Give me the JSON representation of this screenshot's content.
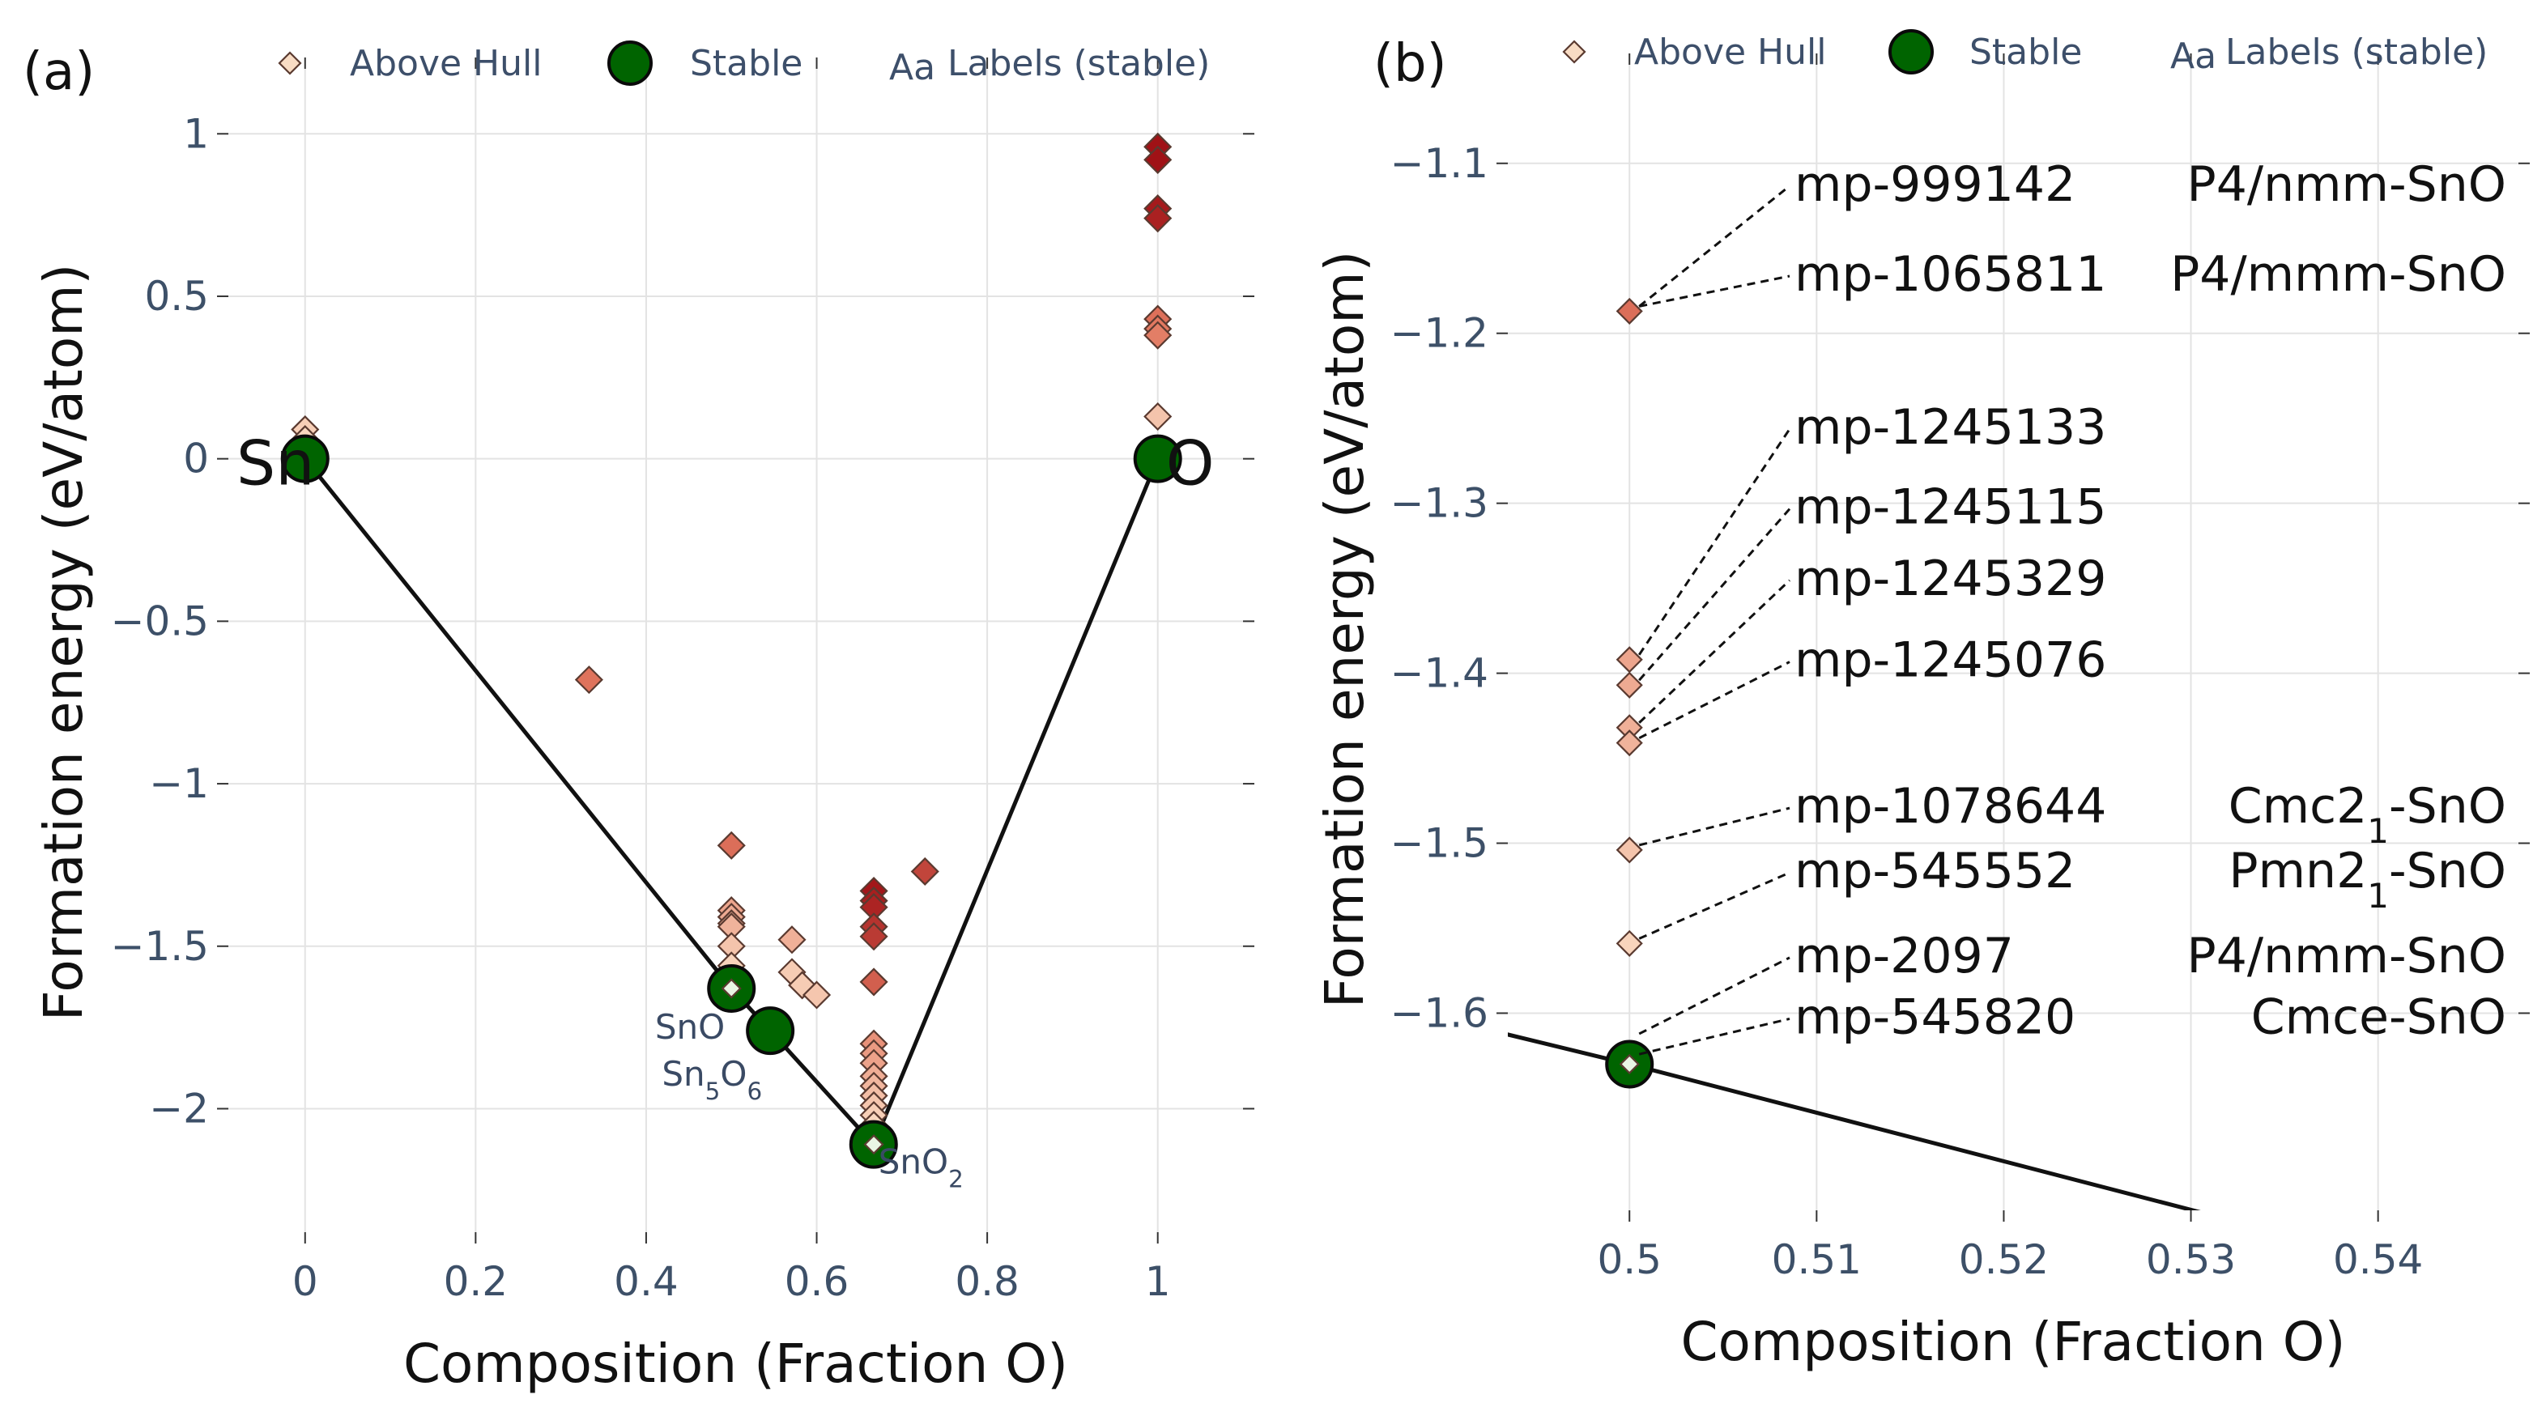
{
  "chart_data": [
    {
      "panel_label": "(a)",
      "type": "scatter",
      "xlabel": "Composition (Fraction O)",
      "ylabel": "Formation energy (eV/atom)",
      "xlim": [
        -0.09,
        1.1
      ],
      "ylim": [
        -2.38,
        1.2
      ],
      "xticks": [
        0,
        0.2,
        0.4,
        0.6,
        0.8,
        1
      ],
      "xtick_labels": [
        "0",
        "0.2",
        "0.4",
        "0.6",
        "0.8",
        "1"
      ],
      "yticks": [
        1,
        0.5,
        0,
        -0.5,
        -1,
        -1.5,
        -2
      ],
      "ytick_labels": [
        "1",
        "0.5",
        "0",
        "−0.5",
        "−1",
        "−1.5",
        "−2"
      ],
      "legend": [
        "Above Hull",
        "Stable",
        "Labels (stable)"
      ],
      "legend_icon_text": "Aa",
      "hull_line": {
        "x": [
          0,
          0.5,
          0.5455,
          0.6667,
          1
        ],
        "y": [
          0,
          -1.63,
          -1.76,
          -2.11,
          0
        ]
      },
      "stable": [
        {
          "x": 0,
          "y": 0
        },
        {
          "x": 0.5,
          "y": -1.63
        },
        {
          "x": 0.5455,
          "y": -1.76
        },
        {
          "x": 0.6667,
          "y": -2.11
        },
        {
          "x": 1,
          "y": 0
        }
      ],
      "above_hull": [
        {
          "x": 0,
          "y": 0.09,
          "e": 0.09
        },
        {
          "x": 0,
          "y": 0.06,
          "e": 0.06
        },
        {
          "x": 0,
          "y": 0.03,
          "e": 0.03
        },
        {
          "x": 0.333,
          "y": -0.68,
          "e": 0.42
        },
        {
          "x": 0.5,
          "y": -1.19,
          "e": 0.44
        },
        {
          "x": 0.5,
          "y": -1.39,
          "e": 0.24
        },
        {
          "x": 0.5,
          "y": -1.41,
          "e": 0.22
        },
        {
          "x": 0.5,
          "y": -1.43,
          "e": 0.2
        },
        {
          "x": 0.5,
          "y": -1.44,
          "e": 0.19
        },
        {
          "x": 0.5,
          "y": -1.5,
          "e": 0.13
        },
        {
          "x": 0.5,
          "y": -1.56,
          "e": 0.07
        },
        {
          "x": 0.5,
          "y": -1.63,
          "e": 0.0
        },
        {
          "x": 0.571,
          "y": -1.48,
          "e": 0.2
        },
        {
          "x": 0.571,
          "y": -1.58,
          "e": 0.1
        },
        {
          "x": 0.583,
          "y": -1.62,
          "e": 0.1
        },
        {
          "x": 0.6,
          "y": -1.65,
          "e": 0.12
        },
        {
          "x": 0.667,
          "y": -1.33,
          "e": 0.78
        },
        {
          "x": 0.667,
          "y": -1.36,
          "e": 0.75
        },
        {
          "x": 0.667,
          "y": -1.38,
          "e": 0.73
        },
        {
          "x": 0.667,
          "y": -1.44,
          "e": 0.67
        },
        {
          "x": 0.667,
          "y": -1.47,
          "e": 0.64
        },
        {
          "x": 0.667,
          "y": -1.61,
          "e": 0.5
        },
        {
          "x": 0.667,
          "y": -1.8,
          "e": 0.31
        },
        {
          "x": 0.667,
          "y": -1.83,
          "e": 0.28
        },
        {
          "x": 0.667,
          "y": -1.86,
          "e": 0.25
        },
        {
          "x": 0.667,
          "y": -1.9,
          "e": 0.21
        },
        {
          "x": 0.667,
          "y": -1.93,
          "e": 0.18
        },
        {
          "x": 0.667,
          "y": -1.96,
          "e": 0.15
        },
        {
          "x": 0.667,
          "y": -1.99,
          "e": 0.12
        },
        {
          "x": 0.667,
          "y": -2.02,
          "e": 0.09
        },
        {
          "x": 0.667,
          "y": -2.05,
          "e": 0.06
        },
        {
          "x": 0.667,
          "y": -2.08,
          "e": 0.03
        },
        {
          "x": 0.667,
          "y": -2.11,
          "e": 0.0
        },
        {
          "x": 0.727,
          "y": -1.27,
          "e": 0.6
        },
        {
          "x": 1,
          "y": 0.96,
          "e": 0.96
        },
        {
          "x": 1,
          "y": 0.92,
          "e": 0.92
        },
        {
          "x": 1,
          "y": 0.77,
          "e": 0.77
        },
        {
          "x": 1,
          "y": 0.74,
          "e": 0.74
        },
        {
          "x": 1,
          "y": 0.43,
          "e": 0.43
        },
        {
          "x": 1,
          "y": 0.4,
          "e": 0.4
        },
        {
          "x": 1,
          "y": 0.38,
          "e": 0.38
        },
        {
          "x": 1,
          "y": 0.13,
          "e": 0.13
        }
      ],
      "element_labels": [
        {
          "text": "Sn",
          "x": 0,
          "y": 0,
          "anchor": "left-edge"
        },
        {
          "text": "O",
          "x": 1,
          "y": 0,
          "anchor": "right-edge"
        }
      ],
      "stable_labels": [
        {
          "parts": [
            [
              "Sn",
              ""
            ],
            [
              "O",
              ""
            ]
          ],
          "x": 0.5,
          "y": -1.63,
          "place": "below-left"
        },
        {
          "parts": [
            [
              "Sn",
              ""
            ],
            [
              "5",
              "sub"
            ],
            [
              "O",
              ""
            ],
            [
              "6",
              "sub"
            ]
          ],
          "x": 0.5455,
          "y": -1.76,
          "place": "below-left"
        },
        {
          "parts": [
            [
              "SnO",
              ""
            ],
            [
              "2",
              "sub"
            ]
          ],
          "x": 0.6667,
          "y": -2.11,
          "place": "right"
        }
      ]
    },
    {
      "panel_label": "(b)",
      "type": "scatter",
      "xlabel": "Composition (Fraction O)",
      "ylabel": "Formation energy (eV/atom)",
      "xlim": [
        0.4935,
        0.5475
      ],
      "ylim": [
        -1.716,
        -1.042
      ],
      "xticks": [
        0.5,
        0.51,
        0.52,
        0.53,
        0.54
      ],
      "xtick_labels": [
        "0.5",
        "0.51",
        "0.52",
        "0.53",
        "0.54"
      ],
      "yticks": [
        -1.1,
        -1.2,
        -1.3,
        -1.4,
        -1.5,
        -1.6
      ],
      "ytick_labels": [
        "−1.1",
        "−1.2",
        "−1.3",
        "−1.4",
        "−1.5",
        "−1.6"
      ],
      "legend": [
        "Above Hull",
        "Stable",
        "Labels (stable)"
      ],
      "legend_icon_text": "Aa",
      "hull_line": {
        "x": [
          0.49,
          0.5,
          0.5455
        ],
        "y": [
          -1.6032,
          -1.63,
          -1.76
        ]
      },
      "stable": [
        {
          "x": 0.5,
          "y": -1.63
        }
      ],
      "above_hull": [
        {
          "x": 0.5,
          "y": -1.187,
          "e": 0.44
        },
        {
          "x": 0.5,
          "y": -1.392,
          "e": 0.24
        },
        {
          "x": 0.5,
          "y": -1.407,
          "e": 0.22
        },
        {
          "x": 0.5,
          "y": -1.432,
          "e": 0.2
        },
        {
          "x": 0.5,
          "y": -1.441,
          "e": 0.19
        },
        {
          "x": 0.5,
          "y": -1.504,
          "e": 0.13
        },
        {
          "x": 0.5,
          "y": -1.559,
          "e": 0.07
        },
        {
          "x": 0.5,
          "y": -1.63,
          "e": 0.0
        }
      ],
      "annotations": [
        {
          "id": "mp-999142",
          "phase": [
            [
              "P4/nmm-SnO",
              ""
            ]
          ],
          "label_y": -1.12,
          "point_y": -1.187
        },
        {
          "id": "mp-1065811",
          "phase": [
            [
              "P4/mmm-SnO",
              ""
            ]
          ],
          "label_y": -1.173,
          "point_y": -1.187
        },
        {
          "id": "mp-1245133",
          "phase": [],
          "label_y": -1.263,
          "point_y": -1.392
        },
        {
          "id": "mp-1245115",
          "phase": [],
          "label_y": -1.31,
          "point_y": -1.407
        },
        {
          "id": "mp-1245329",
          "phase": [],
          "label_y": -1.352,
          "point_y": -1.432
        },
        {
          "id": "mp-1245076",
          "phase": [],
          "label_y": -1.4,
          "point_y": -1.441
        },
        {
          "id": "mp-1078644",
          "phase": [
            [
              "Cmc2",
              ""
            ],
            [
              "1",
              "sub"
            ],
            [
              "-SnO",
              ""
            ]
          ],
          "label_y": -1.486,
          "point_y": -1.504
        },
        {
          "id": "mp-545552",
          "phase": [
            [
              "Pmn2",
              ""
            ],
            [
              "1",
              "sub"
            ],
            [
              "-SnO",
              ""
            ]
          ],
          "label_y": -1.524,
          "point_y": -1.559
        },
        {
          "id": "mp-2097",
          "phase": [
            [
              "P4/nmm-SnO",
              ""
            ]
          ],
          "label_y": -1.574,
          "point_y": -1.615
        },
        {
          "id": "mp-545820",
          "phase": [
            [
              "Cmce-SnO",
              ""
            ]
          ],
          "label_y": -1.61,
          "point_y": -1.627
        }
      ]
    }
  ]
}
